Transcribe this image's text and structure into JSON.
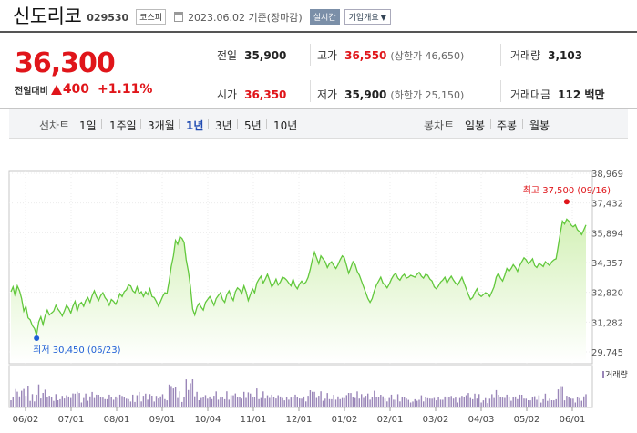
{
  "header": {
    "name": "신도리코",
    "code": "029530",
    "market": "코스피",
    "date": "2023.06.02 기준(장마감)",
    "realtime": "실시간",
    "company_info": "기업개요"
  },
  "quote": {
    "price": "36,300",
    "change_label": "전일대비",
    "change_amount": "400",
    "change_percent": "+1.11%",
    "prev_close_label": "전일",
    "prev_close": "35,900",
    "high_label": "고가",
    "high": "36,550",
    "upper_limit": "(상한가 46,650)",
    "volume_label": "거래량",
    "volume": "3,103",
    "open_label": "시가",
    "open": "36,350",
    "low_label": "저가",
    "low": "35,900",
    "lower_limit": "(하한가 25,150)",
    "value_label": "거래대금",
    "value": "112 백만"
  },
  "periods": {
    "line_label": "선차트",
    "items": [
      "1일",
      "1주일",
      "3개월",
      "1년",
      "3년",
      "5년",
      "10년"
    ],
    "selected": "1년",
    "candle_label": "봉차트",
    "candle_items": [
      "일봉",
      "주봉",
      "월봉"
    ]
  },
  "colors": {
    "up": "#e0151a",
    "down": "#1f5fd6",
    "line": "#62c83c",
    "fill_top": "#d4f1b8",
    "volume_bar": "#9a86b8"
  },
  "chart_data": {
    "type": "area",
    "y_ticks": [
      "38,969",
      "37,432",
      "35,894",
      "34,357",
      "32,820",
      "31,282",
      "29,745"
    ],
    "ylim": [
      29745,
      38969
    ],
    "x_tick_labels": [
      "06/02",
      "07/01",
      "08/01",
      "09/01",
      "10/04",
      "11/01",
      "12/01",
      "01/02",
      "02/01",
      "03/02",
      "04/03",
      "05/02",
      "06/01"
    ],
    "max_annotation": {
      "label": "최고 37,500 (09/16)",
      "value": 37500
    },
    "min_annotation": {
      "label": "최저 30,450 (06/23)",
      "value": 30450
    },
    "volume_label": "거래량",
    "values": [
      32850,
      33100,
      32600,
      33150,
      32900,
      32500,
      31850,
      32100,
      31500,
      31400,
      31100,
      30950,
      30600,
      31300,
      31550,
      31150,
      31600,
      31900,
      31650,
      31750,
      31850,
      32150,
      31950,
      31800,
      31600,
      31850,
      32150,
      32000,
      31750,
      32100,
      32350,
      31850,
      32200,
      32300,
      32100,
      32400,
      32550,
      32300,
      32650,
      32900,
      32600,
      32400,
      32650,
      32800,
      32550,
      32400,
      32150,
      32450,
      32350,
      32200,
      32450,
      32750,
      32600,
      32850,
      32950,
      33200,
      33150,
      32900,
      32800,
      33100,
      32750,
      32850,
      32600,
      32850,
      32700,
      33000,
      32600,
      32550,
      32350,
      32100,
      32350,
      32600,
      32800,
      32750,
      33400,
      34150,
      34700,
      35500,
      35300,
      35700,
      35600,
      35400,
      34500,
      33900,
      33100,
      31950,
      31650,
      32050,
      32250,
      32050,
      31900,
      32300,
      32450,
      32600,
      32400,
      32150,
      32500,
      32650,
      32800,
      32450,
      32300,
      32700,
      32900,
      32600,
      32400,
      32850,
      33050,
      32950,
      32750,
      33150,
      32850,
      32400,
      32700,
      33000,
      32800,
      33300,
      33500,
      33650,
      33300,
      33500,
      33750,
      33450,
      33100,
      33250,
      33500,
      33200,
      33350,
      33600,
      33550,
      33450,
      33300,
      33150,
      33500,
      33150,
      33000,
      33250,
      33400,
      33250,
      33350,
      33600,
      34000,
      34500,
      34900,
      34600,
      34300,
      34700,
      34550,
      34400,
      34100,
      34300,
      34400,
      34200,
      34050,
      34250,
      34500,
      34700,
      34600,
      34200,
      33800,
      34100,
      34400,
      34250,
      33900,
      33700,
      33400,
      33100,
      32800,
      32500,
      32300,
      32500,
      32900,
      33200,
      33400,
      33600,
      33300,
      33200,
      33050,
      33250,
      33500,
      33700,
      33800,
      33550,
      33450,
      33650,
      33750,
      33550,
      33600,
      33700,
      33650,
      33600,
      33750,
      33850,
      33650,
      33550,
      33750,
      33700,
      33500,
      33400,
      33100,
      33000,
      33150,
      33350,
      33450,
      33600,
      33300,
      33500,
      33650,
      33450,
      33300,
      33200,
      33400,
      33600,
      33300,
      33000,
      32700,
      32450,
      32550,
      32800,
      33000,
      32700,
      32600,
      32700,
      32800,
      32750,
      32600,
      32850,
      33100,
      33600,
      33800,
      33550,
      33400,
      33700,
      34050,
      33900,
      34050,
      34250,
      34100,
      33900,
      34200,
      34400,
      34600,
      34500,
      34300,
      34400,
      34550,
      34200,
      34100,
      34300,
      34250,
      34150,
      34400,
      34300,
      34200,
      34400,
      34500,
      34550,
      35200,
      35900,
      36500,
      36350,
      36600,
      36500,
      36300,
      36200,
      36300,
      36050,
      35950,
      35800,
      36050,
      36300
    ]
  }
}
